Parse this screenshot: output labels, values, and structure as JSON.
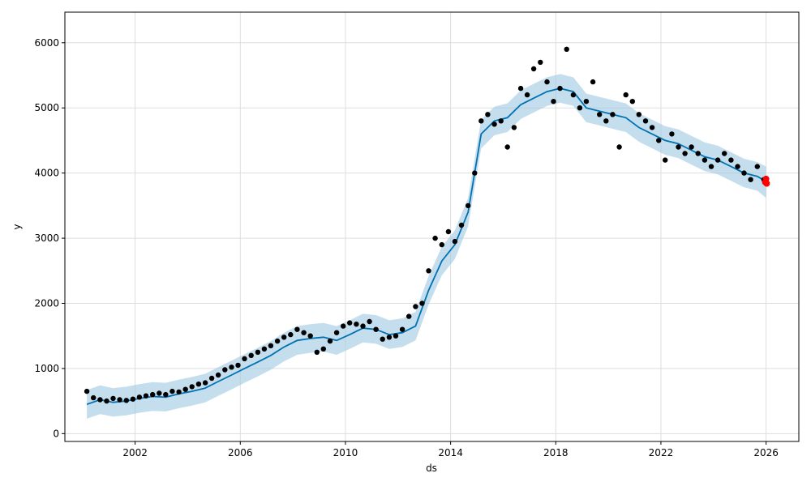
{
  "chart_data": {
    "type": "scatter",
    "title": "",
    "xlabel": "ds",
    "ylabel": "y",
    "x_ticks": [
      "2002",
      "2006",
      "2010",
      "2014",
      "2018",
      "2022",
      "2026"
    ],
    "y_ticks": [
      "0",
      "1000",
      "2000",
      "3000",
      "4000",
      "5000",
      "6000"
    ],
    "xlim": [
      "1999-05-01",
      "2027-04-01"
    ],
    "ylim": [
      -120,
      6470
    ],
    "grid": true,
    "colors": {
      "observed": "#000000",
      "forecast": "#0072B2",
      "uncertainty": "#9ec8e2",
      "highlight": "#ff0000",
      "grid": "#dddddd"
    },
    "series": [
      {
        "role": "forecast",
        "x": [
          "2000-03-01",
          "2000-09-01",
          "2001-03-01",
          "2001-09-01",
          "2002-03-01",
          "2002-09-01",
          "2003-03-01",
          "2003-09-01",
          "2004-03-01",
          "2004-09-01",
          "2005-03-01",
          "2005-09-01",
          "2006-03-01",
          "2006-09-01",
          "2007-03-01",
          "2007-09-01",
          "2008-03-01",
          "2008-09-01",
          "2009-03-01",
          "2009-09-01",
          "2010-03-01",
          "2010-09-01",
          "2011-03-01",
          "2011-09-01",
          "2012-03-01",
          "2012-09-01",
          "2013-03-01",
          "2013-09-01",
          "2014-03-01",
          "2014-09-01",
          "2015-03-01",
          "2015-09-01",
          "2016-03-01",
          "2016-09-01",
          "2017-03-01",
          "2017-09-01",
          "2018-03-01",
          "2018-09-01",
          "2019-03-01",
          "2019-09-01",
          "2020-03-01",
          "2020-09-01",
          "2021-03-01",
          "2021-09-01",
          "2022-03-01",
          "2022-09-01",
          "2023-03-01",
          "2023-09-01",
          "2024-03-01",
          "2024-09-01",
          "2025-03-01",
          "2025-09-01",
          "2026-01-01"
        ],
        "y": [
          450,
          520,
          480,
          500,
          540,
          570,
          560,
          610,
          650,
          700,
          800,
          900,
          1000,
          1100,
          1200,
          1330,
          1430,
          1460,
          1480,
          1430,
          1520,
          1620,
          1600,
          1520,
          1550,
          1650,
          2200,
          2650,
          2900,
          3400,
          4600,
          4800,
          4850,
          5050,
          5150,
          5250,
          5300,
          5250,
          5000,
          4950,
          4900,
          4850,
          4700,
          4600,
          4500,
          4450,
          4350,
          4250,
          4200,
          4100,
          4000,
          3950,
          3870
        ],
        "lower": [
          230,
          300,
          260,
          280,
          320,
          350,
          340,
          390,
          430,
          480,
          580,
          680,
          780,
          880,
          980,
          1110,
          1210,
          1240,
          1260,
          1210,
          1300,
          1400,
          1380,
          1300,
          1330,
          1430,
          1980,
          2430,
          2680,
          3180,
          4380,
          4580,
          4630,
          4830,
          4930,
          5030,
          5080,
          5030,
          4780,
          4730,
          4680,
          4630,
          4480,
          4380,
          4280,
          4230,
          4130,
          4030,
          3980,
          3880,
          3780,
          3730,
          3620
        ],
        "upper": [
          670,
          740,
          700,
          720,
          760,
          790,
          780,
          830,
          870,
          920,
          1020,
          1120,
          1220,
          1320,
          1420,
          1550,
          1650,
          1680,
          1700,
          1650,
          1740,
          1840,
          1820,
          1740,
          1770,
          1870,
          2420,
          2870,
          3120,
          3620,
          4820,
          5020,
          5070,
          5270,
          5370,
          5470,
          5520,
          5470,
          5220,
          5170,
          5120,
          5070,
          4920,
          4820,
          4720,
          4670,
          4570,
          4470,
          4420,
          4320,
          4220,
          4170,
          4100
        ]
      },
      {
        "role": "observed",
        "x": [
          "2000-03-01",
          "2000-06-01",
          "2000-09-01",
          "2000-12-01",
          "2001-03-01",
          "2001-06-01",
          "2001-09-01",
          "2001-12-01",
          "2002-03-01",
          "2002-06-01",
          "2002-09-01",
          "2002-12-01",
          "2003-03-01",
          "2003-06-01",
          "2003-09-01",
          "2003-12-01",
          "2004-03-01",
          "2004-06-01",
          "2004-09-01",
          "2004-12-01",
          "2005-03-01",
          "2005-06-01",
          "2005-09-01",
          "2005-12-01",
          "2006-03-01",
          "2006-06-01",
          "2006-09-01",
          "2006-12-01",
          "2007-03-01",
          "2007-06-01",
          "2007-09-01",
          "2007-12-01",
          "2008-03-01",
          "2008-06-01",
          "2008-09-01",
          "2008-12-01",
          "2009-03-01",
          "2009-06-01",
          "2009-09-01",
          "2009-12-01",
          "2010-03-01",
          "2010-06-01",
          "2010-09-01",
          "2010-12-01",
          "2011-03-01",
          "2011-06-01",
          "2011-09-01",
          "2011-12-01",
          "2012-03-01",
          "2012-06-01",
          "2012-09-01",
          "2012-12-01",
          "2013-03-01",
          "2013-06-01",
          "2013-09-01",
          "2013-12-01",
          "2014-03-01",
          "2014-06-01",
          "2014-09-01",
          "2014-12-01",
          "2015-03-01",
          "2015-06-01",
          "2015-09-01",
          "2015-12-01",
          "2016-03-01",
          "2016-06-01",
          "2016-09-01",
          "2016-12-01",
          "2017-03-01",
          "2017-06-01",
          "2017-09-01",
          "2017-12-01",
          "2018-03-01",
          "2018-06-01",
          "2018-09-01",
          "2018-12-01",
          "2019-03-01",
          "2019-06-01",
          "2019-09-01",
          "2019-12-01",
          "2020-03-01",
          "2020-06-01",
          "2020-09-01",
          "2020-12-01",
          "2021-03-01",
          "2021-06-01",
          "2021-09-01",
          "2021-12-01",
          "2022-03-01",
          "2022-06-01",
          "2022-09-01",
          "2022-12-01",
          "2023-03-01",
          "2023-06-01",
          "2023-09-01",
          "2023-12-01",
          "2024-03-01",
          "2024-06-01",
          "2024-09-01",
          "2024-12-01",
          "2025-03-01",
          "2025-06-01",
          "2025-09-01",
          "2025-12-01"
        ],
        "y": [
          650,
          550,
          520,
          500,
          540,
          520,
          510,
          530,
          560,
          580,
          600,
          620,
          600,
          650,
          640,
          680,
          720,
          760,
          780,
          850,
          900,
          980,
          1020,
          1050,
          1150,
          1200,
          1250,
          1300,
          1350,
          1420,
          1480,
          1520,
          1600,
          1550,
          1500,
          1250,
          1300,
          1420,
          1550,
          1650,
          1700,
          1680,
          1650,
          1720,
          1600,
          1450,
          1480,
          1500,
          1600,
          1800,
          1950,
          2000,
          2500,
          3000,
          2900,
          3100,
          2950,
          3200,
          3500,
          4000,
          4800,
          4900,
          4750,
          4800,
          4400,
          4700,
          5300,
          5200,
          5600,
          5700,
          5400,
          5100,
          5300,
          5900,
          5200,
          5000,
          5100,
          5400,
          4900,
          4800,
          4900,
          4400,
          5200,
          5100,
          4900,
          4800,
          4700,
          4500,
          4200,
          4600,
          4400,
          4300,
          4400,
          4300,
          4200,
          4100,
          4200,
          4300,
          4200,
          4100,
          4000,
          3900,
          4100,
          3900
        ]
      },
      {
        "role": "highlight",
        "x": [
          "2025-12-20",
          "2026-01-01",
          "2026-01-10"
        ],
        "y": [
          3860,
          3910,
          3840
        ]
      }
    ]
  }
}
